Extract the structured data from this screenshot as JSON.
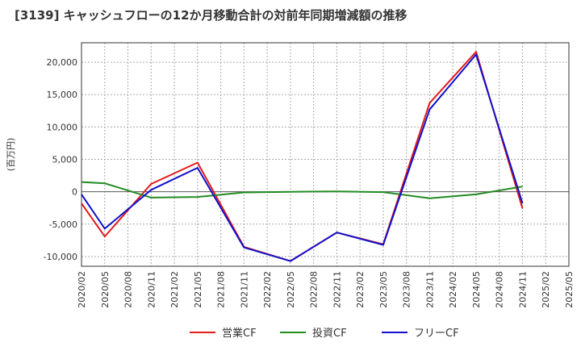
{
  "chart_data": {
    "type": "line",
    "title": "[3139]  キャッシュフローの12か月移動合計の対前年同期増減額の推移",
    "ylabel": "(百万円)",
    "xlabel": "",
    "ylim": [
      -11500,
      23000
    ],
    "yticks": [
      -10000,
      -5000,
      0,
      5000,
      10000,
      15000,
      20000
    ],
    "ytick_labels": [
      "-10,000",
      "-5,000",
      "0",
      "5,000",
      "10,000",
      "15,000",
      "20,000"
    ],
    "categories": [
      "2020/02",
      "2020/05",
      "2020/08",
      "2020/11",
      "2021/02",
      "2021/05",
      "2021/08",
      "2021/11",
      "2022/02",
      "2022/05",
      "2022/08",
      "2022/11",
      "2023/02",
      "2023/05",
      "2023/08",
      "2023/11",
      "2024/02",
      "2024/05",
      "2024/08",
      "2024/11",
      "2025/02",
      "2025/05"
    ],
    "grid": true,
    "legend_position": "bottom",
    "series": [
      {
        "name": "営業CF",
        "color": "#e31a1c",
        "values": [
          -1800,
          -6900,
          null,
          1200,
          null,
          4500,
          null,
          -8500,
          null,
          -10700,
          null,
          -6300,
          null,
          -8100,
          null,
          13700,
          null,
          21600,
          null,
          -2600,
          null,
          null
        ]
      },
      {
        "name": "投資CF",
        "color": "#228b22",
        "values": [
          1500,
          1300,
          null,
          -900,
          null,
          -800,
          null,
          -100,
          null,
          0,
          null,
          50,
          null,
          -50,
          null,
          -1000,
          null,
          -400,
          null,
          800,
          null,
          null
        ]
      },
      {
        "name": "フリーCF",
        "color": "#1010cc",
        "values": [
          -400,
          -5700,
          null,
          300,
          null,
          3700,
          null,
          -8600,
          null,
          -10700,
          null,
          -6300,
          null,
          -8200,
          null,
          12700,
          null,
          21200,
          null,
          -1800,
          null,
          null
        ]
      }
    ]
  }
}
